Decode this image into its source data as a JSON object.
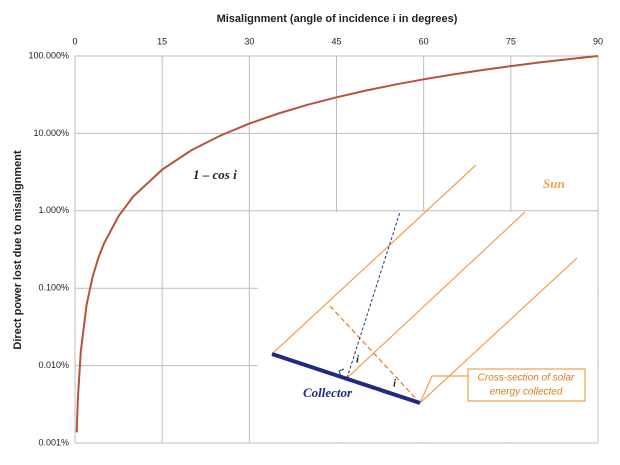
{
  "chart_data": {
    "type": "line",
    "x_label": "Misalignment  (angle of incidence  i  in degrees)",
    "y_label": "Direct power lost due to misalignment",
    "x": [
      0.3,
      0.5,
      1,
      2,
      3,
      4,
      5,
      7.5,
      10,
      15,
      20,
      25,
      30,
      35,
      40,
      45,
      50,
      55,
      60,
      65,
      70,
      75,
      80,
      85,
      90
    ],
    "series": [
      {
        "name": "1 – cos i",
        "color": "#b5533c",
        "values": [
          0.00137,
          0.00381,
          0.01523,
          0.0609,
          0.137,
          0.2436,
          0.3805,
          0.8555,
          1.519,
          3.407,
          6.031,
          9.369,
          13.397,
          18.085,
          23.396,
          29.289,
          35.721,
          42.642,
          50,
          57.738,
          65.798,
          74.118,
          82.635,
          91.284,
          100
        ]
      }
    ],
    "xlim": [
      0,
      90
    ],
    "xticks": [
      0,
      15,
      30,
      45,
      60,
      75,
      90
    ],
    "ylim": [
      0.001,
      100
    ],
    "ylog": true,
    "yticks": [
      {
        "value": 0.001,
        "label": "0.001%"
      },
      {
        "value": 0.01,
        "label": "0.010%"
      },
      {
        "value": 0.1,
        "label": "0.100%"
      },
      {
        "value": 1,
        "label": "1.000%"
      },
      {
        "value": 10,
        "label": "10.000%"
      },
      {
        "value": 100,
        "label": "100.000%"
      }
    ],
    "grid": true,
    "annotations": {
      "curve": "1 – cos i",
      "sun": "Sun",
      "collector": "Collector",
      "angle1": "i",
      "angle2": "i",
      "callout": [
        "Cross-section of solar",
        "energy collected"
      ]
    }
  }
}
